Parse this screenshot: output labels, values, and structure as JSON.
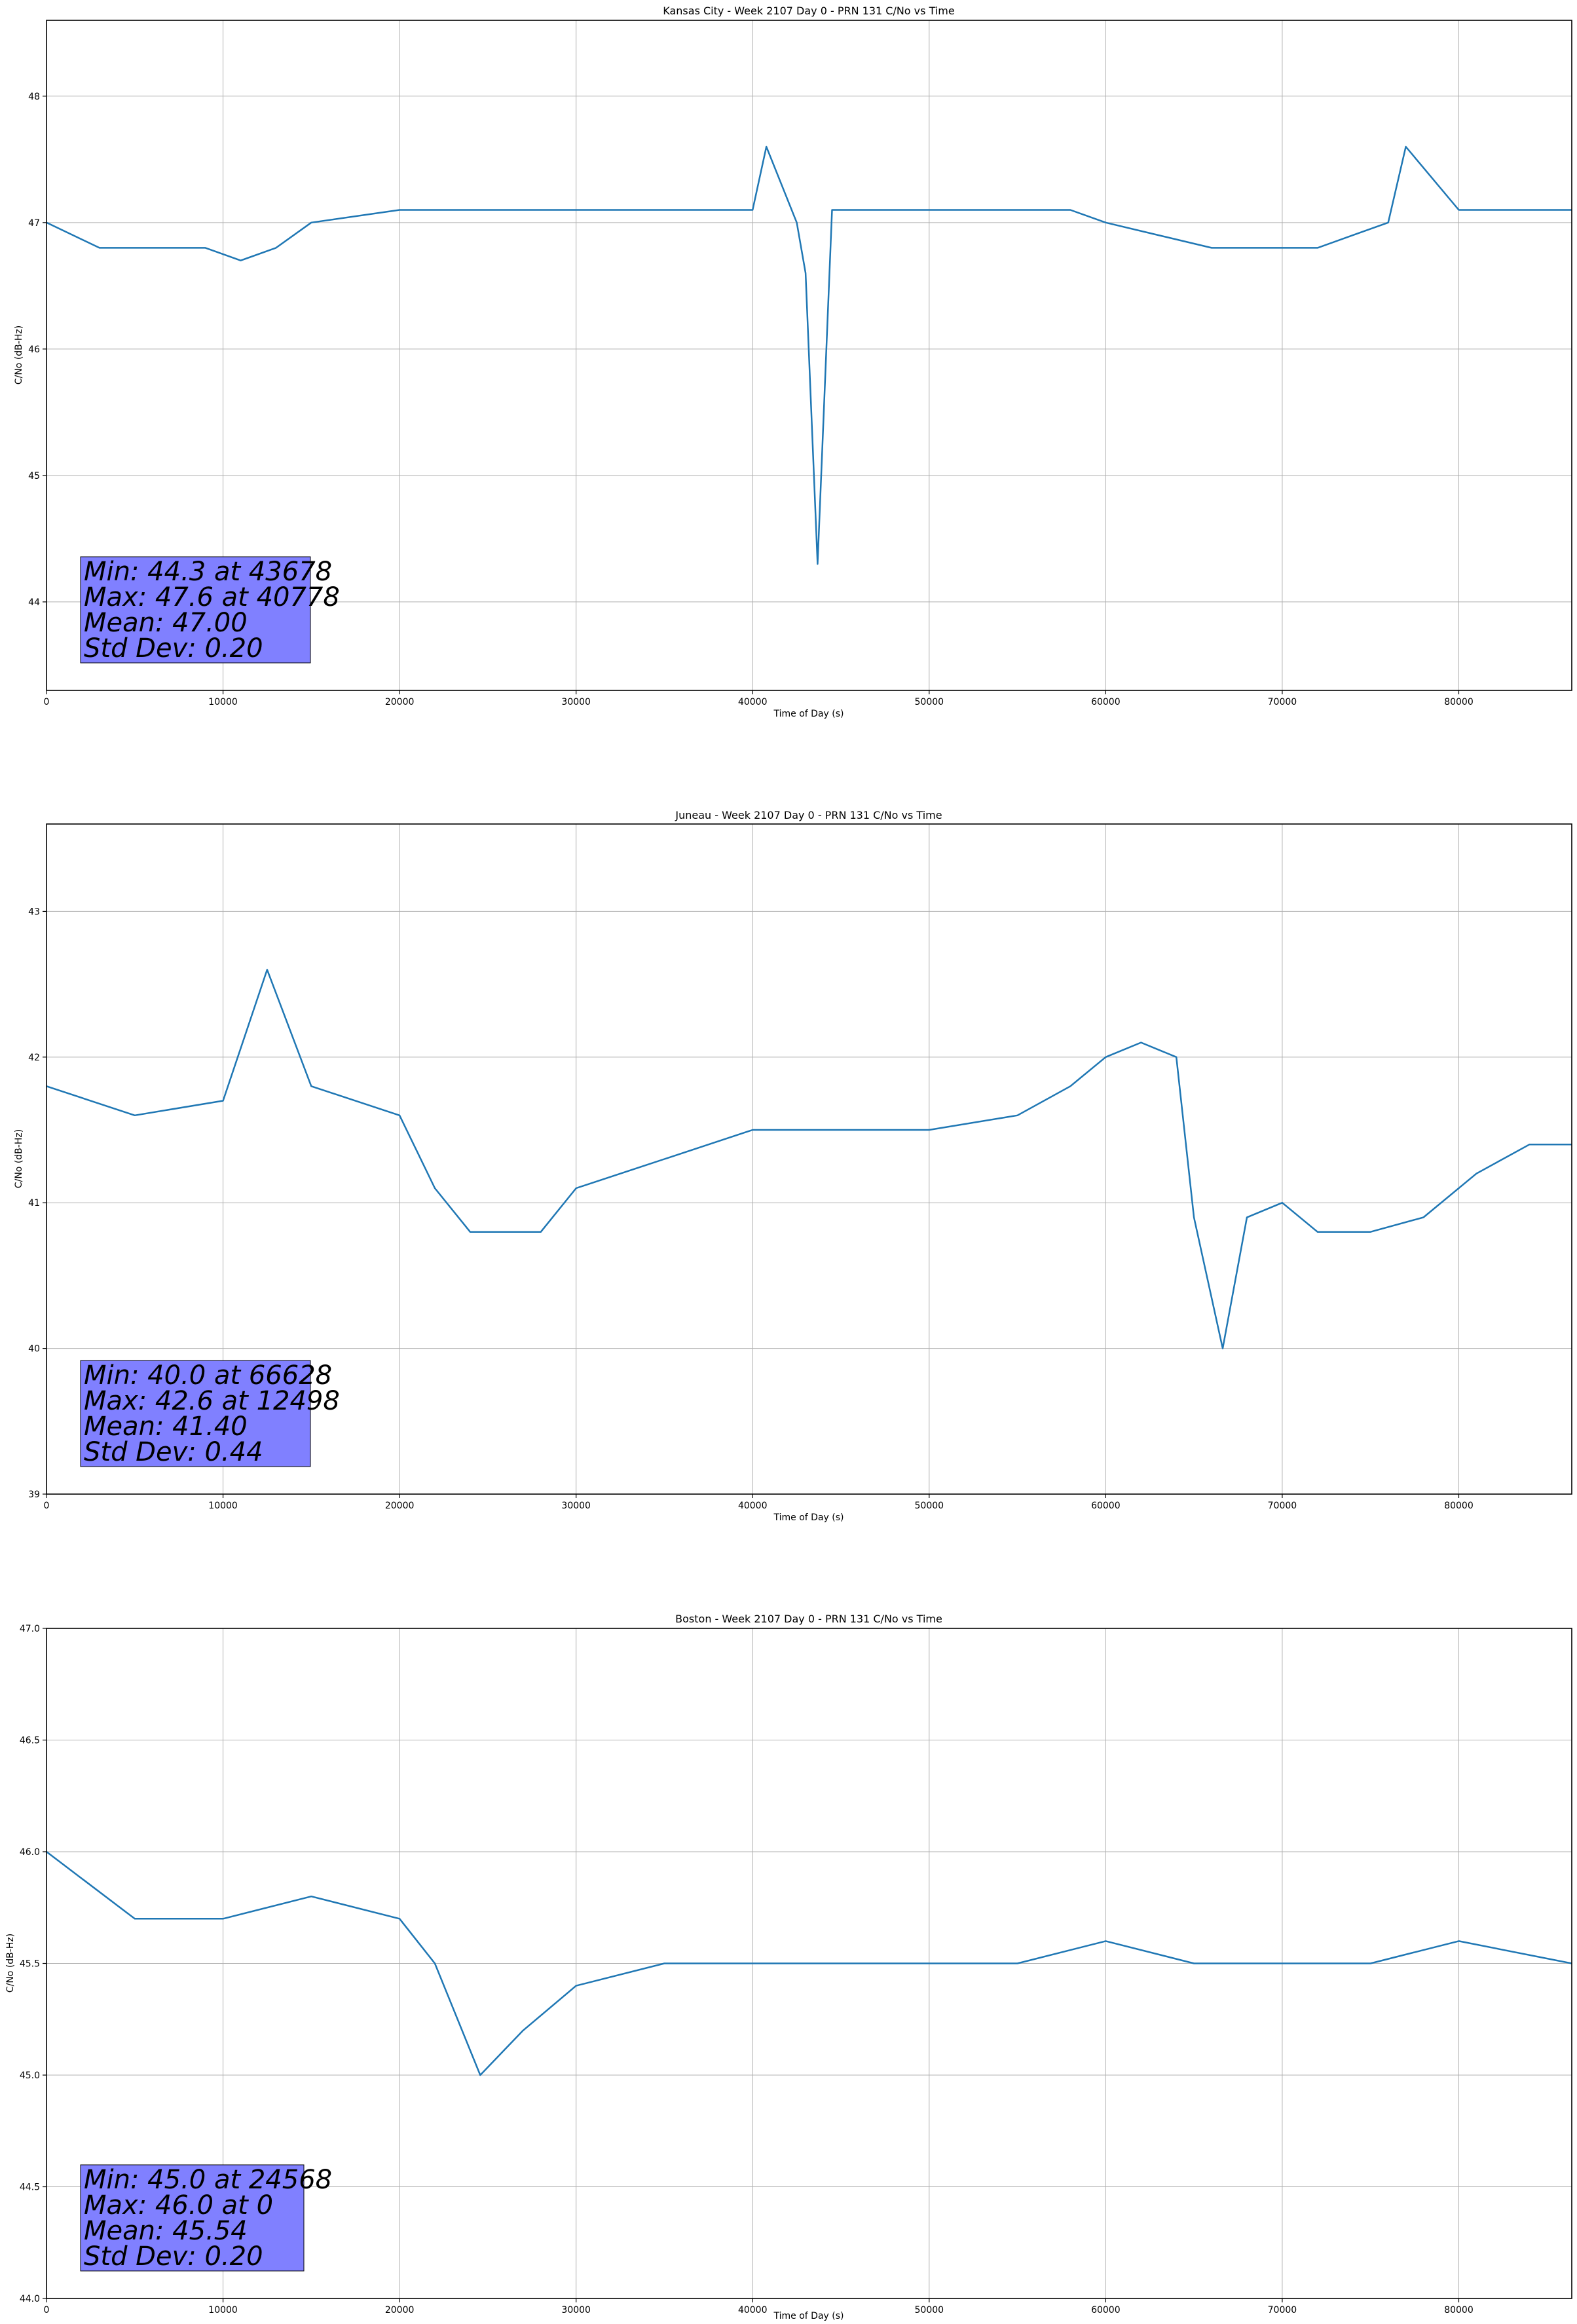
{
  "chart_data": [
    {
      "type": "line",
      "title": "Kansas City - Week 2107 Day 0 - PRN 131 C/No vs Time",
      "xlabel": "Time of Day (s)",
      "ylabel": "C/No (dB-Hz)",
      "xlim": [
        0,
        86400
      ],
      "ylim": [
        43.3,
        48.6
      ],
      "grid": true,
      "color": "#1f77b4",
      "x_ticks": [
        0,
        10000,
        20000,
        30000,
        40000,
        50000,
        60000,
        70000,
        80000
      ],
      "x_tick_labels": [
        "0",
        "10000",
        "20000",
        "30000",
        "40000",
        "50000",
        "60000",
        "70000",
        "80000"
      ],
      "y_ticks": [
        44,
        45,
        46,
        47,
        48
      ],
      "y_tick_labels": [
        "44",
        "45",
        "46",
        "47",
        "48"
      ],
      "series": [
        {
          "name": "PRN 131 C/No",
          "x": [
            0,
            3000,
            6000,
            9000,
            11000,
            13000,
            15000,
            20000,
            30000,
            40000,
            40778,
            42500,
            43000,
            43678,
            44500,
            50000,
            58000,
            60000,
            63000,
            66000,
            70000,
            72000,
            74000,
            76000,
            77000,
            80000,
            86400
          ],
          "y": [
            47.0,
            46.8,
            46.8,
            46.8,
            46.7,
            46.8,
            47.0,
            47.1,
            47.1,
            47.1,
            47.6,
            47.0,
            46.6,
            44.3,
            47.1,
            47.1,
            47.1,
            47.0,
            46.9,
            46.8,
            46.8,
            46.8,
            46.9,
            47.0,
            47.6,
            47.1,
            47.1
          ]
        }
      ],
      "stats": {
        "min": "Min: 44.3 at 43678",
        "max": "Max: 47.6 at 40778",
        "mean": "Mean: 47.00",
        "std": "Std Dev: 0.20"
      }
    },
    {
      "type": "line",
      "title": "Juneau - Week 2107 Day 0 - PRN 131 C/No vs Time",
      "xlabel": "Time of Day (s)",
      "ylabel": "C/No (dB-Hz)",
      "xlim": [
        0,
        86400
      ],
      "ylim": [
        39.0,
        43.6
      ],
      "grid": true,
      "color": "#1f77b4",
      "x_ticks": [
        0,
        10000,
        20000,
        30000,
        40000,
        50000,
        60000,
        70000,
        80000
      ],
      "x_tick_labels": [
        "0",
        "10000",
        "20000",
        "30000",
        "40000",
        "50000",
        "60000",
        "70000",
        "80000"
      ],
      "y_ticks": [
        39,
        40,
        41,
        42,
        43
      ],
      "y_tick_labels": [
        "39",
        "40",
        "41",
        "42",
        "43"
      ],
      "series": [
        {
          "name": "PRN 131 C/No",
          "x": [
            0,
            5000,
            10000,
            12498,
            15000,
            20000,
            22000,
            24000,
            28000,
            30000,
            35000,
            40000,
            45000,
            50000,
            55000,
            58000,
            60000,
            62000,
            64000,
            65000,
            66628,
            68000,
            70000,
            72000,
            75000,
            78000,
            81000,
            84000,
            86400
          ],
          "y": [
            41.8,
            41.6,
            41.7,
            42.6,
            41.8,
            41.6,
            41.1,
            40.8,
            40.8,
            41.1,
            41.3,
            41.5,
            41.5,
            41.5,
            41.6,
            41.8,
            42.0,
            42.1,
            42.0,
            40.9,
            40.0,
            40.9,
            41.0,
            40.8,
            40.8,
            40.9,
            41.2,
            41.4,
            41.4
          ]
        }
      ],
      "stats": {
        "min": "Min: 40.0 at 66628",
        "max": "Max: 42.6 at 12498",
        "mean": "Mean: 41.40",
        "std": "Std Dev: 0.44"
      }
    },
    {
      "type": "line",
      "title": "Boston - Week 2107 Day 0 - PRN 131 C/No vs Time",
      "xlabel": "Time of Day (s)",
      "ylabel": "C/No (dB-Hz)",
      "xlim": [
        0,
        86400
      ],
      "ylim": [
        44.0,
        47.0
      ],
      "grid": true,
      "color": "#1f77b4",
      "x_ticks": [
        0,
        10000,
        20000,
        30000,
        40000,
        50000,
        60000,
        70000,
        80000
      ],
      "x_tick_labels": [
        "0",
        "10000",
        "20000",
        "30000",
        "40000",
        "50000",
        "60000",
        "70000",
        "80000"
      ],
      "y_ticks": [
        44.0,
        44.5,
        45.0,
        45.5,
        46.0,
        46.5,
        47.0
      ],
      "y_tick_labels": [
        "44.0",
        "44.5",
        "45.0",
        "45.5",
        "46.0",
        "46.5",
        "47.0"
      ],
      "series": [
        {
          "name": "PRN 131 C/No",
          "x": [
            0,
            5000,
            10000,
            15000,
            20000,
            22000,
            24568,
            27000,
            30000,
            35000,
            40000,
            45000,
            50000,
            55000,
            60000,
            65000,
            70000,
            75000,
            80000,
            86400
          ],
          "y": [
            46.0,
            45.7,
            45.7,
            45.8,
            45.7,
            45.5,
            45.0,
            45.2,
            45.4,
            45.5,
            45.5,
            45.5,
            45.5,
            45.5,
            45.6,
            45.5,
            45.5,
            45.5,
            45.6,
            45.5
          ]
        }
      ],
      "stats": {
        "min": "Min: 45.0 at 24568",
        "max": "Max: 46.0 at 0",
        "mean": "Mean: 45.54",
        "std": "Std Dev: 0.20"
      }
    }
  ]
}
